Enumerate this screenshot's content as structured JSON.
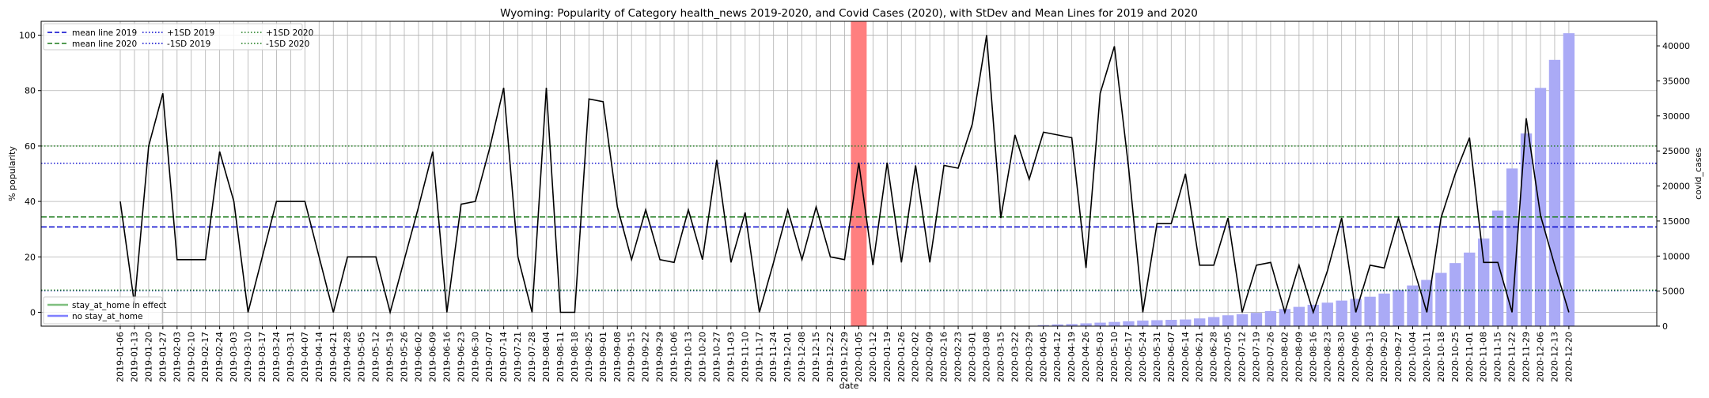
{
  "chart_data": {
    "type": "bar+line",
    "title": "Wyoming: Popularity of Category health_news 2019-2020, and Covid Cases (2020), with StDev and Mean Lines for 2019 and 2020",
    "xlabel": "date",
    "ylabel_left": "% popularity",
    "ylabel_right": "covid_cases",
    "ylim_left": [
      -5,
      105
    ],
    "ylim_right": [
      0,
      43500
    ],
    "yticks_left": [
      0,
      20,
      40,
      60,
      80,
      100
    ],
    "yticks_right": [
      0,
      5000,
      10000,
      15000,
      20000,
      25000,
      30000,
      35000,
      40000
    ],
    "grid": true,
    "dates": [
      "2019-01-06",
      "2019-01-13",
      "2019-01-20",
      "2019-01-27",
      "2019-02-03",
      "2019-02-10",
      "2019-02-17",
      "2019-02-24",
      "2019-03-03",
      "2019-03-10",
      "2019-03-17",
      "2019-03-24",
      "2019-03-31",
      "2019-04-07",
      "2019-04-14",
      "2019-04-21",
      "2019-04-28",
      "2019-05-05",
      "2019-05-12",
      "2019-05-19",
      "2019-05-26",
      "2019-06-02",
      "2019-06-09",
      "2019-06-16",
      "2019-06-23",
      "2019-06-30",
      "2019-07-07",
      "2019-07-14",
      "2019-07-21",
      "2019-07-28",
      "2019-08-04",
      "2019-08-11",
      "2019-08-18",
      "2019-08-25",
      "2019-09-01",
      "2019-09-08",
      "2019-09-15",
      "2019-09-22",
      "2019-09-29",
      "2019-10-06",
      "2019-10-13",
      "2019-10-20",
      "2019-10-27",
      "2019-11-03",
      "2019-11-10",
      "2019-11-17",
      "2019-11-24",
      "2019-12-01",
      "2019-12-08",
      "2019-12-15",
      "2019-12-22",
      "2019-12-29",
      "2020-01-05",
      "2020-01-12",
      "2020-01-19",
      "2020-01-26",
      "2020-02-02",
      "2020-02-09",
      "2020-02-16",
      "2020-02-23",
      "2020-03-01",
      "2020-03-08",
      "2020-03-15",
      "2020-03-22",
      "2020-03-29",
      "2020-04-05",
      "2020-04-12",
      "2020-04-19",
      "2020-04-26",
      "2020-05-03",
      "2020-05-10",
      "2020-05-17",
      "2020-05-24",
      "2020-05-31",
      "2020-06-07",
      "2020-06-14",
      "2020-06-21",
      "2020-06-28",
      "2020-07-05",
      "2020-07-12",
      "2020-07-19",
      "2020-07-26",
      "2020-08-02",
      "2020-08-09",
      "2020-08-16",
      "2020-08-23",
      "2020-08-30",
      "2020-09-06",
      "2020-09-13",
      "2020-09-20",
      "2020-09-27",
      "2020-10-04",
      "2020-10-11",
      "2020-10-18",
      "2020-10-25",
      "2020-11-01",
      "2020-11-08",
      "2020-11-15",
      "2020-11-22",
      "2020-11-29",
      "2020-12-06",
      "2020-12-13",
      "2020-12-20"
    ],
    "popularity": [
      40,
      3,
      60,
      79,
      19,
      19,
      19,
      58,
      40,
      0,
      20,
      40,
      40,
      40,
      20,
      0,
      20,
      20,
      20,
      0,
      19,
      38,
      58,
      0,
      39,
      40,
      59,
      81,
      20,
      0,
      81,
      0,
      0,
      77,
      76,
      38,
      19,
      37,
      19,
      18,
      37,
      19,
      55,
      18,
      36,
      0,
      18,
      37,
      19,
      38,
      20,
      19,
      54,
      17,
      54,
      18,
      53,
      18,
      53,
      52,
      68,
      100,
      34,
      64,
      48,
      65,
      64,
      63,
      16,
      79,
      96,
      52,
      0,
      32,
      32,
      50,
      17,
      17,
      34,
      0,
      17,
      18,
      0,
      17,
      0,
      15,
      34,
      0,
      17,
      16,
      34,
      17,
      0,
      34,
      50,
      63,
      18,
      18,
      0,
      70,
      35,
      17,
      0
    ],
    "covid_cases": [
      0,
      0,
      0,
      0,
      0,
      0,
      0,
      0,
      0,
      0,
      0,
      0,
      0,
      0,
      0,
      0,
      0,
      0,
      0,
      0,
      0,
      0,
      0,
      0,
      0,
      0,
      0,
      0,
      0,
      0,
      0,
      0,
      0,
      0,
      0,
      0,
      0,
      0,
      0,
      0,
      0,
      0,
      0,
      0,
      0,
      0,
      0,
      0,
      0,
      0,
      0,
      0,
      0,
      0,
      0,
      0,
      0,
      0,
      0,
      0,
      0,
      0,
      0,
      0,
      30,
      150,
      250,
      300,
      400,
      500,
      600,
      700,
      800,
      850,
      900,
      950,
      1100,
      1300,
      1550,
      1700,
      1900,
      2150,
      2450,
      2750,
      3050,
      3350,
      3650,
      3900,
      4200,
      4650,
      5200,
      5800,
      6600,
      7600,
      9000,
      10500,
      12500,
      16500,
      22500,
      27500,
      34000,
      38000,
      41800
    ],
    "stay_at_home_index": 52,
    "mean_2019": 30.8,
    "mean_2020": 34.4,
    "plus_1sd_2019": 53.8,
    "minus_1sd_2019": 7.8,
    "plus_1sd_2020": 60.0,
    "minus_1sd_2020": 8.0,
    "colors": {
      "line": "#000000",
      "bars": "#aaaaf6",
      "stay_at_home": "#ff7f7f",
      "mean_2019": "#0000cc",
      "mean_2020": "#1a7a1a",
      "sd_2019": "#0000cc",
      "sd_2020": "#1a7a1a",
      "legend_stay": "#7fbf7f",
      "legend_no_stay": "#7f7fff"
    },
    "legend_lines": [
      {
        "label": "mean line 2019",
        "style": "dashed",
        "color": "#0000cc"
      },
      {
        "label": "mean line 2020",
        "style": "dashed",
        "color": "#1a7a1a"
      },
      {
        "label": "+1SD 2019",
        "style": "dotted",
        "color": "#0000cc"
      },
      {
        "label": "-1SD 2019",
        "style": "dotted",
        "color": "#0000cc"
      },
      {
        "label": "+1SD 2020",
        "style": "dotted",
        "color": "#1a7a1a"
      },
      {
        "label": "-1SD 2020",
        "style": "dotted",
        "color": "#1a7a1a"
      }
    ],
    "legend_patches": [
      {
        "label": "stay_at_home in effect",
        "color": "#7fbf7f"
      },
      {
        "label": "no stay_at_home",
        "color": "#7f7fff"
      }
    ]
  }
}
